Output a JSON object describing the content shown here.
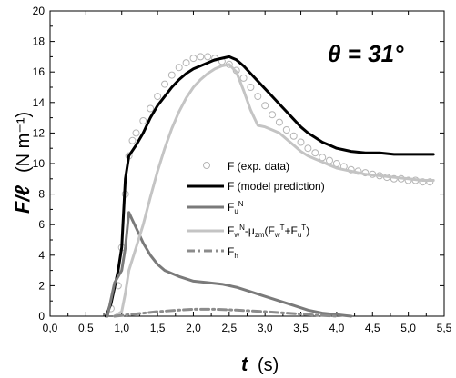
{
  "chart_data": {
    "type": "line",
    "xlabel": "t",
    "xlabel_unit": "(s)",
    "ylabel": "F/ℓ",
    "ylabel_unit": "(N m⁻¹)",
    "xlim": [
      0.0,
      5.5
    ],
    "ylim": [
      0,
      20
    ],
    "xticks": [
      "0,0",
      "0,5",
      "1,0",
      "1,5",
      "2,0",
      "2,5",
      "3,0",
      "3,5",
      "4,0",
      "4,5",
      "5,0",
      "5,5"
    ],
    "yticks": [
      "0",
      "2",
      "4",
      "6",
      "8",
      "10",
      "12",
      "14",
      "16",
      "18",
      "20"
    ],
    "annotation": "θ = 31°",
    "legend_position": "center",
    "series": [
      {
        "name": "F (exp. data)",
        "style": "scatter",
        "color": "#b4b4b4",
        "x": [
          0.85,
          0.95,
          1.0,
          1.05,
          1.1,
          1.15,
          1.2,
          1.3,
          1.4,
          1.5,
          1.6,
          1.7,
          1.8,
          1.9,
          2.0,
          2.1,
          2.2,
          2.3,
          2.4,
          2.5,
          2.6,
          2.7,
          2.8,
          2.9,
          3.0,
          3.1,
          3.2,
          3.3,
          3.4,
          3.5,
          3.6,
          3.7,
          3.8,
          3.9,
          4.0,
          4.1,
          4.2,
          4.3,
          4.4,
          4.5,
          4.6,
          4.7,
          4.8,
          4.9,
          5.0,
          5.1,
          5.2,
          5.3
        ],
        "y": [
          0.5,
          2.0,
          4.5,
          8.0,
          10.5,
          11.5,
          12.0,
          12.8,
          13.6,
          14.4,
          15.2,
          15.8,
          16.3,
          16.6,
          16.9,
          17.0,
          17.0,
          16.9,
          16.7,
          16.5,
          16.1,
          15.6,
          15.0,
          14.4,
          13.8,
          13.2,
          12.7,
          12.2,
          11.8,
          11.4,
          11.0,
          10.7,
          10.4,
          10.2,
          10.0,
          9.8,
          9.6,
          9.5,
          9.4,
          9.3,
          9.2,
          9.1,
          9.0,
          9.0,
          8.9,
          8.9,
          8.8,
          8.8
        ]
      },
      {
        "name": "F (model prediction)",
        "style": "line",
        "color": "#000000",
        "width": 3,
        "x": [
          0.78,
          0.85,
          0.95,
          1.0,
          1.05,
          1.1,
          1.2,
          1.3,
          1.4,
          1.5,
          1.6,
          1.7,
          1.8,
          1.9,
          2.0,
          2.1,
          2.2,
          2.3,
          2.4,
          2.5,
          2.6,
          2.7,
          2.8,
          2.9,
          3.0,
          3.1,
          3.2,
          3.3,
          3.4,
          3.5,
          3.6,
          3.7,
          3.8,
          3.9,
          4.0,
          4.1,
          4.2,
          4.4,
          4.6,
          4.8,
          5.0,
          5.2,
          5.35
        ],
        "y": [
          0.0,
          0.8,
          3.0,
          4.5,
          9.0,
          10.5,
          11.2,
          12.0,
          13.0,
          13.8,
          14.4,
          15.0,
          15.5,
          15.9,
          16.2,
          16.4,
          16.6,
          16.8,
          16.9,
          17.0,
          16.8,
          16.4,
          15.9,
          15.4,
          14.9,
          14.4,
          13.9,
          13.4,
          12.9,
          12.4,
          12.0,
          11.7,
          11.4,
          11.2,
          11.0,
          10.9,
          10.8,
          10.7,
          10.7,
          10.6,
          10.6,
          10.6,
          10.6
        ]
      },
      {
        "name": "F_u^N",
        "style": "line",
        "color": "#7a7a7a",
        "width": 3,
        "x": [
          0.8,
          0.9,
          1.0,
          1.05,
          1.1,
          1.15,
          1.2,
          1.3,
          1.4,
          1.5,
          1.6,
          1.8,
          2.0,
          2.2,
          2.4,
          2.6,
          2.8,
          3.0,
          3.2,
          3.4,
          3.6,
          3.8,
          4.0,
          4.2
        ],
        "y": [
          0.0,
          2.2,
          3.0,
          4.5,
          6.8,
          6.3,
          5.8,
          4.8,
          4.0,
          3.4,
          3.0,
          2.6,
          2.3,
          2.2,
          2.1,
          1.9,
          1.6,
          1.3,
          1.0,
          0.7,
          0.4,
          0.2,
          0.1,
          0.0
        ]
      },
      {
        "name": "F_w^N-μ_zm(F_w^T+F_u^T)",
        "style": "line",
        "color": "#c4c4c4",
        "width": 3,
        "x": [
          0.9,
          1.0,
          1.05,
          1.1,
          1.2,
          1.3,
          1.4,
          1.5,
          1.6,
          1.7,
          1.8,
          1.9,
          2.0,
          2.1,
          2.2,
          2.3,
          2.4,
          2.5,
          2.6,
          2.7,
          2.8,
          2.9,
          3.0,
          3.1,
          3.2,
          3.3,
          3.4,
          3.5,
          3.6,
          3.7,
          3.8,
          3.9,
          4.0,
          4.2,
          4.4,
          4.6,
          4.8,
          5.0,
          5.2,
          5.35
        ],
        "y": [
          0.0,
          0.3,
          1.5,
          3.0,
          4.5,
          6.0,
          7.8,
          9.5,
          11.0,
          12.3,
          13.4,
          14.3,
          15.0,
          15.5,
          15.9,
          16.2,
          16.4,
          16.5,
          16.0,
          14.8,
          13.5,
          12.5,
          12.4,
          12.2,
          12.0,
          11.6,
          11.2,
          10.8,
          10.5,
          10.3,
          10.1,
          9.9,
          9.7,
          9.5,
          9.3,
          9.2,
          9.1,
          9.0,
          8.9,
          8.9
        ]
      },
      {
        "name": "F_h",
        "style": "dashdot",
        "color": "#8c8c8c",
        "width": 3,
        "x": [
          0.9,
          1.0,
          1.2,
          1.5,
          1.8,
          2.0,
          2.3,
          2.6,
          3.0,
          3.3,
          3.6,
          4.0
        ],
        "y": [
          0.0,
          0.05,
          0.15,
          0.3,
          0.4,
          0.45,
          0.45,
          0.4,
          0.3,
          0.2,
          0.1,
          0.0
        ]
      }
    ]
  }
}
